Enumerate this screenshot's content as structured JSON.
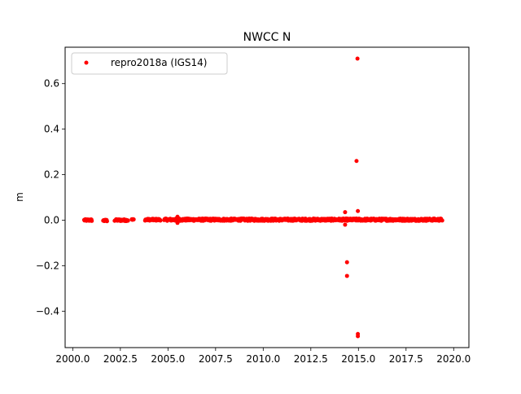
{
  "chart_data": {
    "type": "scatter",
    "title": "NWCC N",
    "xlabel": "",
    "ylabel": "m",
    "xlim": [
      1999.6,
      2020.8
    ],
    "ylim": [
      -0.56,
      0.76
    ],
    "xticks": [
      2000.0,
      2002.5,
      2005.0,
      2007.5,
      2010.0,
      2012.5,
      2015.0,
      2017.5,
      2020.0
    ],
    "xtick_labels": [
      "2000.0",
      "2002.5",
      "2005.0",
      "2007.5",
      "2010.0",
      "2012.5",
      "2015.0",
      "2017.5",
      "2020.0"
    ],
    "yticks": [
      -0.4,
      -0.2,
      0.0,
      0.2,
      0.4,
      0.6
    ],
    "ytick_labels": [
      "−0.4",
      "−0.2",
      "0.0",
      "0.2",
      "0.4",
      "0.6"
    ],
    "grid": false,
    "legend": {
      "placement": "upper-left"
    },
    "series": [
      {
        "name": "repro2018a (IGS14)",
        "color": "#ff0000",
        "marker": "point",
        "dense_runs": [
          {
            "x_start": 2000.6,
            "x_end": 2001.0,
            "y": 0.0,
            "jitter": 0.004
          },
          {
            "x_start": 2001.6,
            "x_end": 2001.8,
            "y": -0.002,
            "jitter": 0.004
          },
          {
            "x_start": 2002.2,
            "x_end": 2002.9,
            "y": 0.0,
            "jitter": 0.004
          },
          {
            "x_start": 2003.1,
            "x_end": 2003.2,
            "y": 0.002,
            "jitter": 0.003
          },
          {
            "x_start": 2003.8,
            "x_end": 2004.6,
            "y": 0.002,
            "jitter": 0.004
          },
          {
            "x_start": 2004.8,
            "x_end": 2019.4,
            "y": 0.002,
            "jitter": 0.005
          }
        ],
        "outliers": [
          {
            "x": 2014.95,
            "y": 0.71
          },
          {
            "x": 2014.9,
            "y": 0.26
          },
          {
            "x": 2014.97,
            "y": 0.04
          },
          {
            "x": 2014.3,
            "y": 0.035
          },
          {
            "x": 2014.3,
            "y": -0.02
          },
          {
            "x": 2014.4,
            "y": -0.185
          },
          {
            "x": 2014.4,
            "y": -0.245
          },
          {
            "x": 2014.97,
            "y": -0.5
          },
          {
            "x": 2014.97,
            "y": -0.51
          },
          {
            "x": 2005.5,
            "y": 0.015
          },
          {
            "x": 2005.5,
            "y": -0.012
          }
        ]
      }
    ]
  }
}
